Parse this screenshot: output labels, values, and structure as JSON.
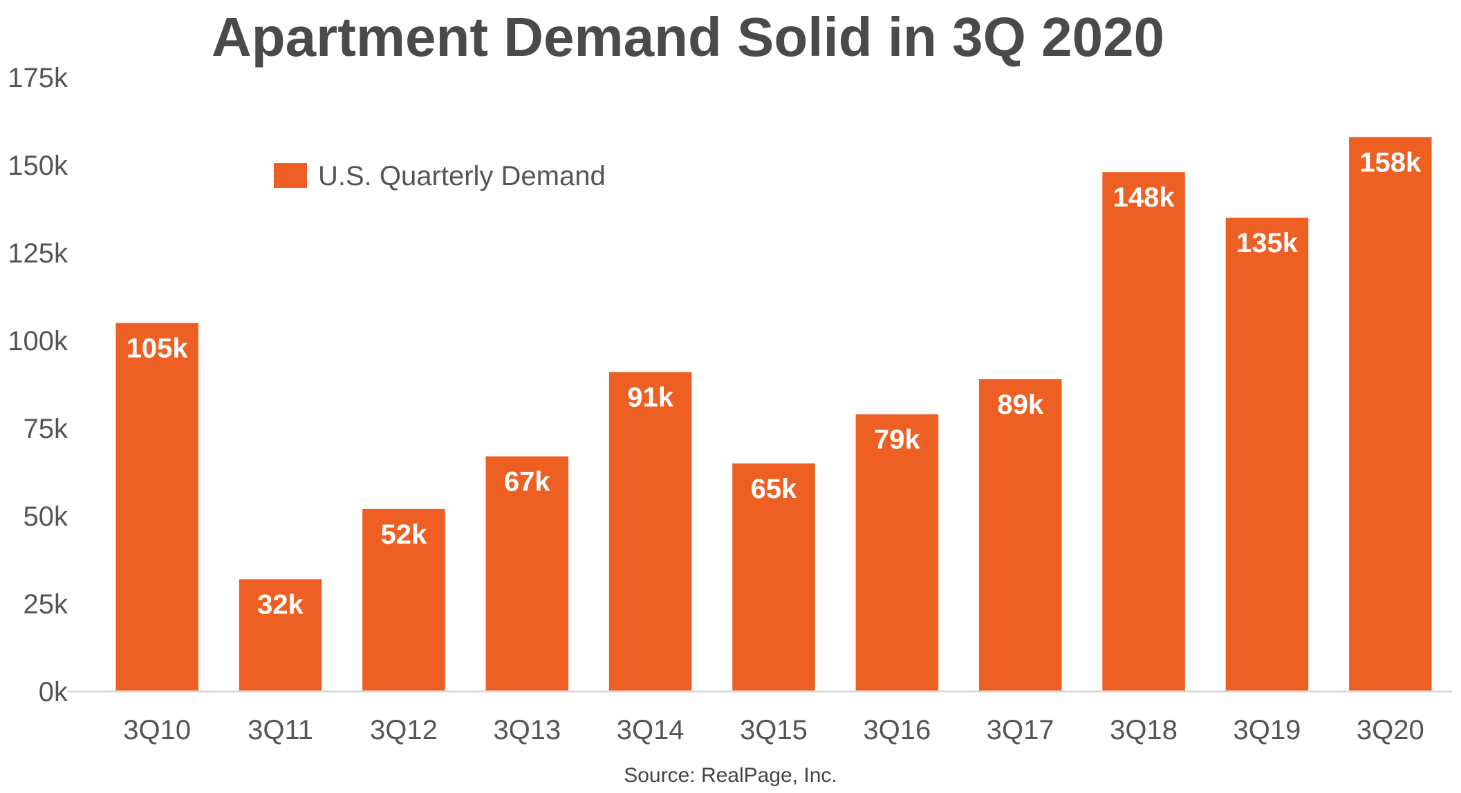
{
  "chart_data": {
    "type": "bar",
    "title": "Apartment Demand Solid in 3Q 2020",
    "categories": [
      "3Q10",
      "3Q11",
      "3Q12",
      "3Q13",
      "3Q14",
      "3Q15",
      "3Q16",
      "3Q17",
      "3Q18",
      "3Q19",
      "3Q20"
    ],
    "series": [
      {
        "name": "U.S. Quarterly Demand",
        "values": [
          105000,
          32000,
          52000,
          67000,
          91000,
          65000,
          79000,
          89000,
          148000,
          135000,
          158000
        ],
        "data_labels": [
          "105k",
          "32k",
          "52k",
          "67k",
          "91k",
          "65k",
          "79k",
          "89k",
          "148k",
          "135k",
          "158k"
        ],
        "color": "#ee5f23"
      }
    ],
    "xlabel": "",
    "ylabel": "",
    "ylim": [
      0,
      175000
    ],
    "yticks": [
      0,
      25000,
      50000,
      75000,
      100000,
      125000,
      150000,
      175000
    ],
    "ytick_labels": [
      "0k",
      "25k",
      "50k",
      "75k",
      "100k",
      "125k",
      "150k",
      "175k"
    ],
    "grid": false,
    "legend_position": "top-left",
    "source": "Source: RealPage, Inc."
  },
  "colors": {
    "bar": "#ee5f23",
    "title_text": "#4a4a4a",
    "axis_text": "#555555",
    "data_label_text": "#ffffff",
    "baseline": "#d9d9d9"
  }
}
